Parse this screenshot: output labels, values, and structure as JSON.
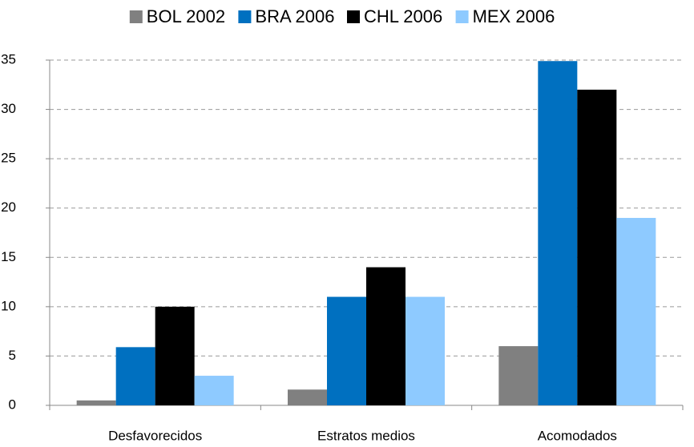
{
  "chart_data": {
    "type": "bar",
    "categories": [
      "Desfavorecidos",
      "Estratos medios",
      "Acomodados"
    ],
    "series": [
      {
        "name": "BOL 2002",
        "color": "#808080",
        "values": [
          0.5,
          1.6,
          6
        ]
      },
      {
        "name": "BRA 2006",
        "color": "#0070c0",
        "values": [
          5.9,
          11,
          34.9
        ]
      },
      {
        "name": "CHL 2006",
        "color": "#000000",
        "values": [
          10,
          14,
          32
        ]
      },
      {
        "name": "MEX 2006",
        "color": "#8ecaff",
        "values": [
          3,
          11,
          19
        ]
      }
    ],
    "ylim": [
      0,
      35
    ],
    "yticks": [
      0,
      5,
      10,
      15,
      20,
      25,
      30,
      35
    ],
    "grid": true,
    "legend": "top"
  }
}
